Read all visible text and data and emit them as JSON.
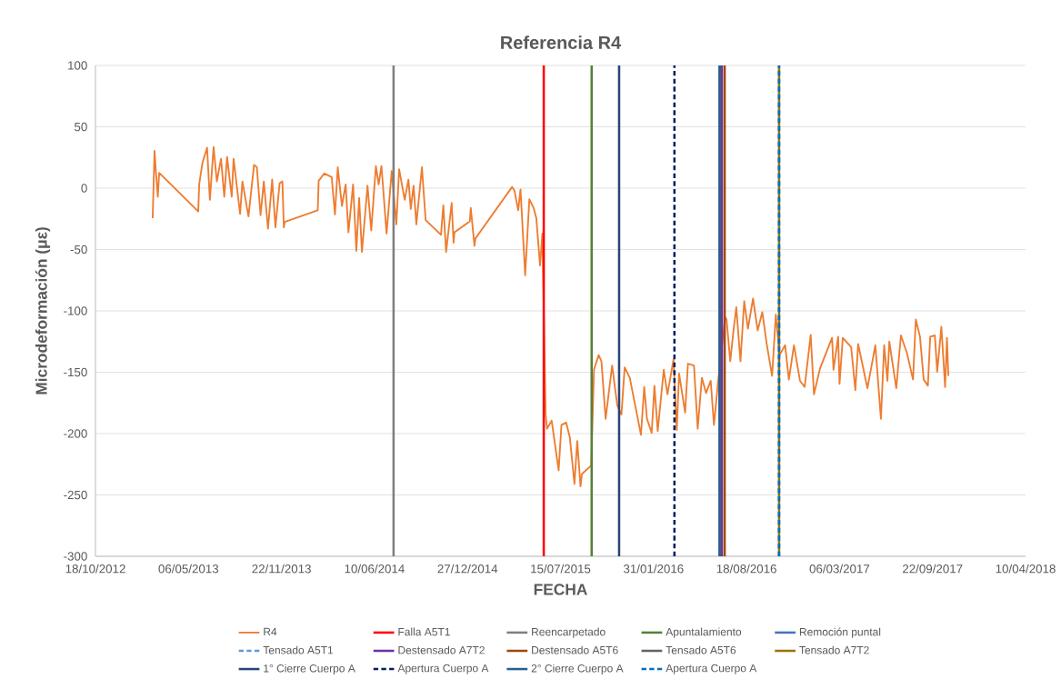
{
  "chart_data": {
    "type": "line",
    "title": "Referencia R4",
    "xlabel": "FECHA",
    "ylabel": "Microdeformación (με)",
    "xlim": [
      "2012-10-18",
      "2018-04-10"
    ],
    "ylim": [
      -300,
      100
    ],
    "xticks": [
      {
        "value": "2012-10-18",
        "label": "18/10/2012"
      },
      {
        "value": "2013-05-06",
        "label": "06/05/2013"
      },
      {
        "value": "2013-11-22",
        "label": "22/11/2013"
      },
      {
        "value": "2014-06-10",
        "label": "10/06/2014"
      },
      {
        "value": "2014-12-27",
        "label": "27/12/2014"
      },
      {
        "value": "2015-07-15",
        "label": "15/07/2015"
      },
      {
        "value": "2016-01-31",
        "label": "31/01/2016"
      },
      {
        "value": "2016-08-18",
        "label": "18/08/2016"
      },
      {
        "value": "2017-03-06",
        "label": "06/03/2017"
      },
      {
        "value": "2017-09-22",
        "label": "22/09/2017"
      },
      {
        "value": "2018-04-10",
        "label": "10/04/2018"
      }
    ],
    "yticks": [
      -300,
      -250,
      -200,
      -150,
      -100,
      -50,
      0,
      50,
      100
    ],
    "grid": "y",
    "legend": "bottom",
    "marker": "none",
    "line_style": "solid",
    "series": [
      {
        "name": "R4",
        "color": "#ed7d31",
        "x": [
          "2013-02-18",
          "2013-02-22",
          "2013-02-25",
          "2013-03-01",
          "2013-03-04",
          "2013-05-27",
          "2013-05-29",
          "2013-06-05",
          "2013-06-15",
          "2013-06-21",
          "2013-06-29",
          "2013-07-06",
          "2013-07-15",
          "2013-07-22",
          "2013-07-28",
          "2013-08-07",
          "2013-08-11",
          "2013-08-25",
          "2013-08-30",
          "2013-09-12",
          "2013-09-24",
          "2013-09-30",
          "2013-10-08",
          "2013-10-15",
          "2013-10-24",
          "2013-11-02",
          "2013-11-09",
          "2013-11-18",
          "2013-11-24",
          "2013-11-27",
          "2013-11-29",
          "2014-02-08",
          "2014-02-10",
          "2014-02-22",
          "2014-03-10",
          "2014-03-17",
          "2014-03-23",
          "2014-04-01",
          "2014-04-09",
          "2014-04-15",
          "2014-04-25",
          "2014-05-02",
          "2014-05-08",
          "2014-05-14",
          "2014-05-26",
          "2014-06-03",
          "2014-06-13",
          "2014-06-19",
          "2014-06-25",
          "2014-07-06",
          "2014-07-17",
          "2014-07-27",
          "2014-08-02",
          "2014-08-14",
          "2014-08-22",
          "2014-08-27",
          "2014-09-02",
          "2014-09-08",
          "2014-09-20",
          "2014-09-28",
          "2014-10-31",
          "2014-11-05",
          "2014-11-11",
          "2014-11-23",
          "2014-11-27",
          "2014-11-29",
          "2015-01-01",
          "2015-01-03",
          "2015-01-11",
          "2015-01-13",
          "2015-04-02",
          "2015-04-07",
          "2015-04-15",
          "2015-04-20",
          "2015-04-30",
          "2015-05-09",
          "2015-05-18",
          "2015-05-24",
          "2015-06-01",
          "2015-06-06",
          "2015-06-13",
          "2015-06-16",
          "2015-06-26",
          "2015-07-11",
          "2015-07-17",
          "2015-07-27",
          "2015-08-04",
          "2015-08-14",
          "2015-08-20",
          "2015-08-27",
          "2015-08-30",
          "2015-09-19",
          "2015-09-25",
          "2015-10-05",
          "2015-10-11",
          "2015-10-20",
          "2015-11-03",
          "2015-11-14",
          "2015-11-23",
          "2015-11-30",
          "2015-12-11",
          "2016-01-04",
          "2016-01-11",
          "2016-01-17",
          "2016-01-27",
          "2016-02-02",
          "2016-02-09",
          "2016-02-22",
          "2016-03-01",
          "2016-03-14",
          "2016-03-21",
          "2016-03-26",
          "2016-04-08",
          "2016-04-14",
          "2016-04-27",
          "2016-05-05",
          "2016-05-14",
          "2016-05-23",
          "2016-06-02",
          "2016-06-09",
          "2016-06-18",
          "2016-07-03",
          "2016-07-06",
          "2016-07-14",
          "2016-07-21",
          "2016-07-27",
          "2016-08-05",
          "2016-08-13",
          "2016-08-21",
          "2016-09-01",
          "2016-09-11",
          "2016-09-21",
          "2016-09-30",
          "2016-10-12",
          "2016-10-20",
          "2016-10-28",
          "2016-11-09",
          "2016-11-17",
          "2016-11-28",
          "2016-12-11",
          "2016-12-21",
          "2017-01-03",
          "2017-01-10",
          "2017-01-23",
          "2017-02-18",
          "2017-02-21",
          "2017-03-03",
          "2017-03-06",
          "2017-03-13",
          "2017-03-31",
          "2017-04-09",
          "2017-04-15",
          "2017-05-05",
          "2017-05-22",
          "2017-06-03",
          "2017-06-10",
          "2017-06-17",
          "2017-06-21",
          "2017-07-06",
          "2017-07-16",
          "2017-07-29",
          "2017-08-11",
          "2017-08-17",
          "2017-08-26",
          "2017-09-03",
          "2017-09-12",
          "2017-09-17",
          "2017-09-27",
          "2017-10-02",
          "2017-10-11",
          "2017-10-19",
          "2017-10-23",
          "2017-10-26"
        ],
        "values": [
          -24.5,
          30.5,
          13,
          -7,
          12.5,
          -19,
          3,
          20.5,
          33,
          -9.5,
          33.5,
          5.5,
          24,
          -7,
          25.5,
          -7,
          24,
          -21,
          5.5,
          -23,
          19,
          17,
          -22,
          5.5,
          -33,
          7,
          -32,
          4,
          5.5,
          -32,
          -27.5,
          -18,
          6,
          12,
          9,
          -21.5,
          17,
          -14.5,
          3,
          -36,
          3,
          -51,
          -8,
          -52,
          2,
          -34.5,
          18,
          3,
          18,
          -37,
          14,
          -29.5,
          15.5,
          -9.5,
          7,
          -17,
          2,
          -29.5,
          17,
          -26,
          -38,
          -14,
          -52,
          -12,
          -44.5,
          -36,
          -27,
          -16,
          -47,
          -41,
          1,
          -2,
          -18,
          -1,
          -71,
          -9,
          -16,
          -24.5,
          -63,
          -37,
          -184.5,
          -196,
          -189.5,
          -230,
          -193,
          -191,
          -203,
          -241,
          -206,
          -243,
          -233,
          -226,
          -148,
          -136,
          -141,
          -188,
          -144.5,
          -177,
          -184.5,
          -146,
          -154.5,
          -201,
          -162,
          -188,
          -199.5,
          -161,
          -198,
          -148,
          -168,
          -139.5,
          -197,
          -151,
          -183,
          -143,
          -144.5,
          -196,
          -154.5,
          -167,
          -157,
          -193,
          -157,
          -105,
          -107,
          -141,
          -116,
          -97,
          -141,
          -92,
          -114.5,
          -90,
          -116,
          -101,
          -126,
          -153,
          -103,
          -136,
          -128,
          -156,
          -128,
          -157,
          -162,
          -119.5,
          -168,
          -147,
          -122,
          -148,
          -121,
          -159.5,
          -122,
          -129.5,
          -164.5,
          -127,
          -163,
          -128,
          -188,
          -128,
          -157,
          -125,
          -163,
          -120,
          -134.5,
          -156,
          -107,
          -121,
          -156,
          -161,
          -121,
          -120,
          -149.5,
          -113,
          -162,
          -122,
          -153
        ]
      }
    ],
    "ref_lines": [
      {
        "axis": "x",
        "value": "2015-06-09",
        "label": "Falla A5T1",
        "color": "#ff0000",
        "line_style": "solid"
      },
      {
        "axis": "x",
        "value": "2014-07-21",
        "label": "Reencarpetado",
        "color": "#7f7f7f",
        "line_style": "solid"
      },
      {
        "axis": "x",
        "value": "2015-09-20",
        "label": "Apuntalamiento",
        "color": "#548235",
        "line_style": "solid"
      },
      {
        "axis": "x",
        "value": "2016-06-22",
        "label": "Remoción puntal",
        "color": "#4472c4",
        "line_style": "solid"
      },
      {
        "axis": "x",
        "value": "2016-10-27",
        "label": "Tensado A5T1",
        "color": "#5b9bd5",
        "line_style": "dashed"
      },
      {
        "axis": "x",
        "value": "2016-06-26",
        "label": "Destensado A7T2",
        "color": "#7030a0",
        "line_style": "solid"
      },
      {
        "axis": "x",
        "value": "2016-07-02",
        "label": "Destensado A5T6",
        "color": "#9e480e",
        "line_style": "solid"
      },
      {
        "axis": "x",
        "value": "2016-06-22",
        "label": "Tensado A5T6",
        "color": "#636363",
        "line_style": "solid"
      },
      {
        "axis": "x",
        "value": "2016-10-27",
        "label": "Tensado A7T2",
        "color": "#997300",
        "line_style": "solid"
      },
      {
        "axis": "x",
        "value": "2015-11-18",
        "label": "1° Cierre Cuerpo A",
        "color": "#264478",
        "line_style": "solid"
      },
      {
        "axis": "x",
        "value": "2016-03-16",
        "label": "Apertura Cuerpo A",
        "color": "#002060",
        "line_style": "dashed"
      },
      {
        "axis": "x",
        "value": "2016-06-21",
        "label": "2° Cierre Cuerpo A",
        "color": "#255e91",
        "line_style": "solid"
      },
      {
        "axis": "x",
        "value": "2016-10-27",
        "label": "Apertura Cuerpo A",
        "color": "#0070c0",
        "line_style": "dashed"
      }
    ]
  }
}
